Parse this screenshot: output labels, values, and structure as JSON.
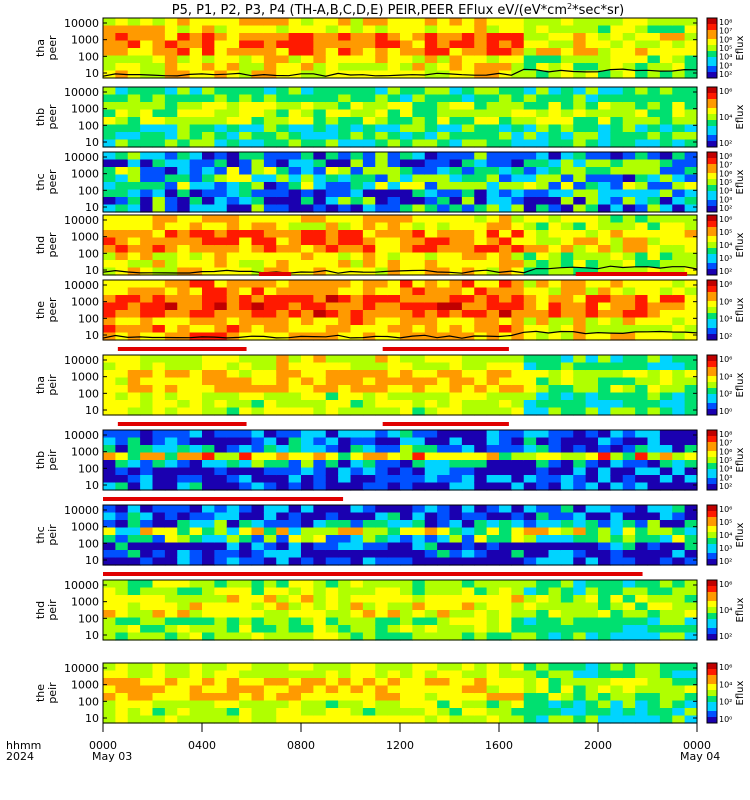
{
  "chart_data": {
    "type": "heatmap",
    "title": "P5, P1, P2, P3, P4 (TH-A,B,C,D,E) PEIR,PEER EFlux eV/(eV*cm",
    "title_sup": "2",
    "title_tail": "*sec*sr)",
    "x_axis": {
      "row1_label": "hhmm",
      "row2_label": "2024",
      "ticks": [
        "0000",
        "0400",
        "0800",
        "1200",
        "1600",
        "2000",
        "0000"
      ],
      "tick_hours": [
        0,
        4,
        8,
        12,
        16,
        20,
        24
      ],
      "date_start": "May 03",
      "date_end": "May 04",
      "range_hours": [
        0,
        24
      ]
    },
    "colorbar_label": "Eflux",
    "colorscale": [
      "#1a00b0",
      "#0050ff",
      "#00d4ff",
      "#00e070",
      "#b0ff00",
      "#ffff00",
      "#ff9a00",
      "#ff1a00",
      "#c00000"
    ],
    "panels": [
      {
        "probe": "tha",
        "species": "peer",
        "y_ticks": [
          "10000",
          "1000",
          "100",
          "10"
        ],
        "cbar_ticks": [
          "10⁸",
          "10⁷",
          "10⁶",
          "10⁵",
          "10⁴",
          "10³",
          "10²"
        ],
        "level": 0.74,
        "band": 0.0,
        "noise": 0.0,
        "change_hour": 17.0,
        "after_level": 0.6,
        "has_curve": true,
        "mode_bar": []
      },
      {
        "probe": "thb",
        "species": "peer",
        "y_ticks": [
          "10000",
          "1000",
          "100",
          "10"
        ],
        "cbar_ticks": [
          "10⁶",
          "10⁴",
          "10²"
        ],
        "level": 0.5,
        "band": 0.0,
        "noise": 0.0,
        "change_hour": -1,
        "after_level": 0.5,
        "has_curve": false,
        "mode_bar": []
      },
      {
        "probe": "thc",
        "species": "peer",
        "y_ticks": [
          "10000",
          "1000",
          "100",
          "10"
        ],
        "cbar_ticks": [
          "10⁸",
          "10⁷",
          "10⁶",
          "10⁵",
          "10⁴",
          "10³",
          "10²"
        ],
        "level": 0.36,
        "band": 0.0,
        "noise": 0.3,
        "change_hour": -1,
        "after_level": 0.36,
        "has_curve": false,
        "mode_bar": []
      },
      {
        "probe": "thd",
        "species": "peer",
        "y_ticks": [
          "10000",
          "1000",
          "100",
          "10"
        ],
        "cbar_ticks": [
          "10⁶",
          "10⁵",
          "10⁴",
          "10³",
          "10²"
        ],
        "level": 0.74,
        "band": 0.0,
        "noise": 0.0,
        "change_hour": 17.2,
        "after_level": 0.62,
        "has_curve": true,
        "mode_bar": []
      },
      {
        "probe": "the",
        "species": "peer",
        "y_ticks": [
          "10000",
          "1000",
          "100",
          "10"
        ],
        "cbar_ticks": [
          "10⁸",
          "10⁶",
          "10⁴",
          "10²"
        ],
        "level": 0.8,
        "band": 0.0,
        "noise": 0.0,
        "change_hour": 17.0,
        "after_level": 0.7,
        "has_curve": true,
        "mode_bar": [
          [
            6.3,
            7.6
          ],
          [
            19.1,
            23.6
          ]
        ]
      },
      {
        "probe": "tha",
        "species": "peir",
        "y_ticks": [
          "10000",
          "1000",
          "100",
          "10"
        ],
        "cbar_ticks": [
          "10⁶",
          "10⁴",
          "10²",
          "10⁰"
        ],
        "level": 0.66,
        "band": 0.0,
        "noise": 0.0,
        "change_hour": 17.0,
        "after_level": 0.5,
        "has_curve": false,
        "mode_bar": [
          [
            0.6,
            5.8
          ],
          [
            11.3,
            16.4
          ]
        ]
      },
      {
        "probe": "thb",
        "species": "peir",
        "y_ticks": [
          "10000",
          "1000",
          "100",
          "10"
        ],
        "cbar_ticks": [
          "10⁸",
          "10⁷",
          "10⁶",
          "10⁵",
          "10⁴",
          "10³",
          "10²"
        ],
        "level": 0.22,
        "band": 0.58,
        "noise": 0.25,
        "change_hour": -1,
        "after_level": 0.22,
        "has_curve": false,
        "mode_bar": [
          [
            0.6,
            5.8
          ],
          [
            11.3,
            16.4
          ]
        ]
      },
      {
        "probe": "thc",
        "species": "peir",
        "y_ticks": [
          "10000",
          "1000",
          "100",
          "10"
        ],
        "cbar_ticks": [
          "10⁶",
          "10⁵",
          "10⁴",
          "10³",
          "10²"
        ],
        "level": 0.24,
        "band": 0.52,
        "noise": 0.25,
        "change_hour": -1,
        "after_level": 0.24,
        "has_curve": false,
        "mode_bar": [
          [
            0.0,
            9.7
          ]
        ]
      },
      {
        "probe": "thd",
        "species": "peir",
        "y_ticks": [
          "10000",
          "1000",
          "100",
          "10"
        ],
        "cbar_ticks": [
          "10⁶",
          "10⁴",
          "10²"
        ],
        "level": 0.6,
        "band": 0.0,
        "noise": 0.0,
        "change_hour": 17.2,
        "after_level": 0.5,
        "has_curve": false,
        "mode_bar": [
          [
            0.0,
            21.8
          ]
        ]
      },
      {
        "probe": "the",
        "species": "peir",
        "y_ticks": [
          "10000",
          "1000",
          "100",
          "10"
        ],
        "cbar_ticks": [
          "10⁶",
          "10⁴",
          "10²",
          "10⁰"
        ],
        "level": 0.66,
        "band": 0.0,
        "noise": 0.0,
        "change_hour": 17.0,
        "after_level": 0.5,
        "has_curve": false,
        "mode_bar": []
      }
    ]
  }
}
